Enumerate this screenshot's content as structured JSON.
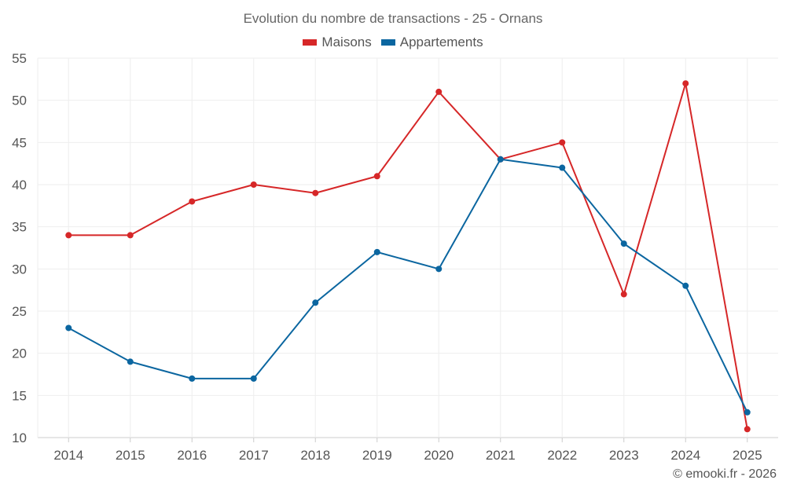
{
  "chart_data": {
    "type": "line",
    "title": "Evolution du nombre de transactions - 25 - Ornans",
    "categories": [
      "2014",
      "2015",
      "2016",
      "2017",
      "2018",
      "2019",
      "2020",
      "2021",
      "2022",
      "2023",
      "2024",
      "2025"
    ],
    "series": [
      {
        "name": "Maisons",
        "color": "#d62728",
        "values": [
          34,
          34,
          38,
          40,
          39,
          41,
          51,
          43,
          45,
          27,
          52,
          11
        ]
      },
      {
        "name": "Appartements",
        "color": "#0b66a0",
        "values": [
          23,
          19,
          17,
          17,
          26,
          32,
          30,
          43,
          42,
          33,
          28,
          13
        ]
      }
    ],
    "ylim": [
      10,
      55
    ],
    "yticks": [
      10,
      15,
      20,
      25,
      30,
      35,
      40,
      45,
      50,
      55
    ],
    "xlabel": "",
    "ylabel": "",
    "grid": true,
    "legend_position": "top-center"
  },
  "copyright": "© emooki.fr - 2026"
}
